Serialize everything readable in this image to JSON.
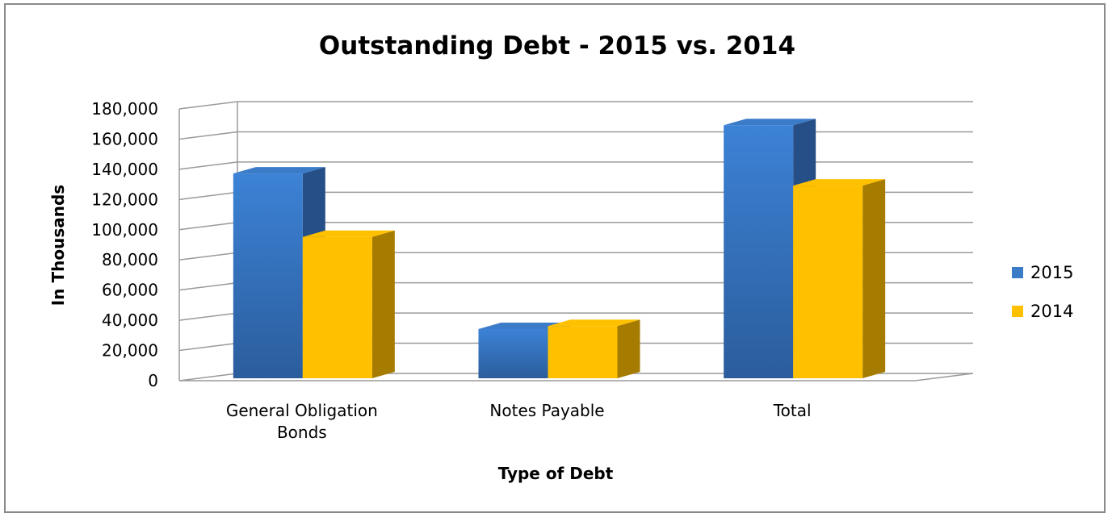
{
  "chart_data": {
    "type": "bar",
    "title": "Outstanding Debt - 2015 vs. 2014",
    "xlabel": "Type of Debt",
    "ylabel": "In Thousands",
    "categories": [
      [
        "General Obligation",
        "Bonds"
      ],
      [
        "Notes Payable"
      ],
      [
        "Total"
      ]
    ],
    "series": [
      {
        "name": "2015",
        "values": [
          134000,
          31000,
          166000
        ],
        "color": "#3b7cc9",
        "dark": "#254f86"
      },
      {
        "name": "2014",
        "values": [
          92000,
          33000,
          126000
        ],
        "color": "#ffc000",
        "dark": "#a67c00"
      }
    ],
    "ylim": [
      0,
      180000
    ],
    "yticks": [
      "0",
      "20,000",
      "40,000",
      "60,000",
      "80,000",
      "100,000",
      "120,000",
      "140,000",
      "160,000",
      "180,000"
    ],
    "grid": true,
    "legend_position": "right",
    "three_d": true
  }
}
